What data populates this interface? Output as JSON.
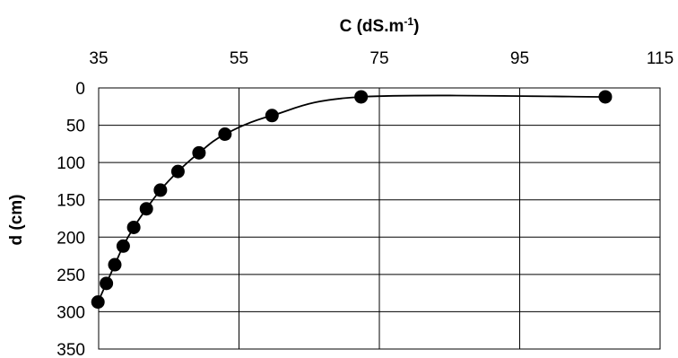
{
  "chart_data": {
    "type": "scatter",
    "xlabel": "C (dS.m",
    "xlabel_superscript": "-1",
    "xlabel_suffix": ")",
    "ylabel": "d (cm)",
    "xlim": [
      35,
      115
    ],
    "ylim": [
      0,
      350
    ],
    "y_inverted": true,
    "x_axis_position": "top",
    "xticks": [
      35,
      55,
      75,
      95,
      115
    ],
    "yticks": [
      0,
      50,
      100,
      150,
      200,
      250,
      300,
      350
    ],
    "grid": true,
    "legend": "none",
    "marker_color": "#000000",
    "line_color": "#000000",
    "series": [
      {
        "x": [
          34.9,
          36.1,
          37.3,
          38.5,
          40.0,
          41.8,
          43.8,
          46.3,
          49.3,
          53.0,
          59.7,
          72.4,
          107.2
        ],
        "y": [
          287,
          262,
          237,
          212,
          187,
          162,
          137,
          112,
          87,
          62,
          37,
          12,
          12
        ]
      }
    ]
  }
}
